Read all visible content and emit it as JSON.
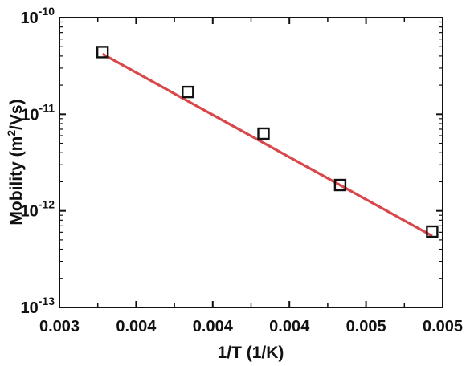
{
  "chart_data": {
    "type": "scatter",
    "xlabel": "1/T (1/K)",
    "ylabel_main": "Mobility (m",
    "ylabel_sup": "2",
    "ylabel_tail": "/Vs)",
    "y_scale": "log",
    "xlim": [
      0.0032,
      0.0052
    ],
    "ylim_exponents": [
      -13,
      -10
    ],
    "x_tick_values": [
      0.0032,
      0.0036,
      0.004,
      0.0044,
      0.0048,
      0.0052
    ],
    "x_tick_labels": [
      "0.003",
      "0.004",
      "0.004",
      "0.004",
      "0.005",
      "0.005"
    ],
    "y_tick_exponents": [
      -13,
      -12,
      -11,
      -10
    ],
    "y_tick_base": "10",
    "y_tick_sups": [
      "-13",
      "-12",
      "-11",
      "-10"
    ],
    "grid": false,
    "series": [
      {
        "marker": "open-square",
        "x": [
          0.003425,
          0.00387,
          0.004265,
          0.004665,
          0.005145
        ],
        "y": [
          4.4e-11,
          1.7e-11,
          6.3e-12,
          1.85e-12,
          6.1e-13
        ]
      }
    ],
    "fit_line": {
      "x": [
        0.003425,
        0.005145
      ],
      "y": [
        4.2e-11,
        5.5e-13
      ]
    },
    "colors": {
      "marker": "#111111",
      "fit_line": "#d8484a",
      "axes": "#111111"
    }
  }
}
